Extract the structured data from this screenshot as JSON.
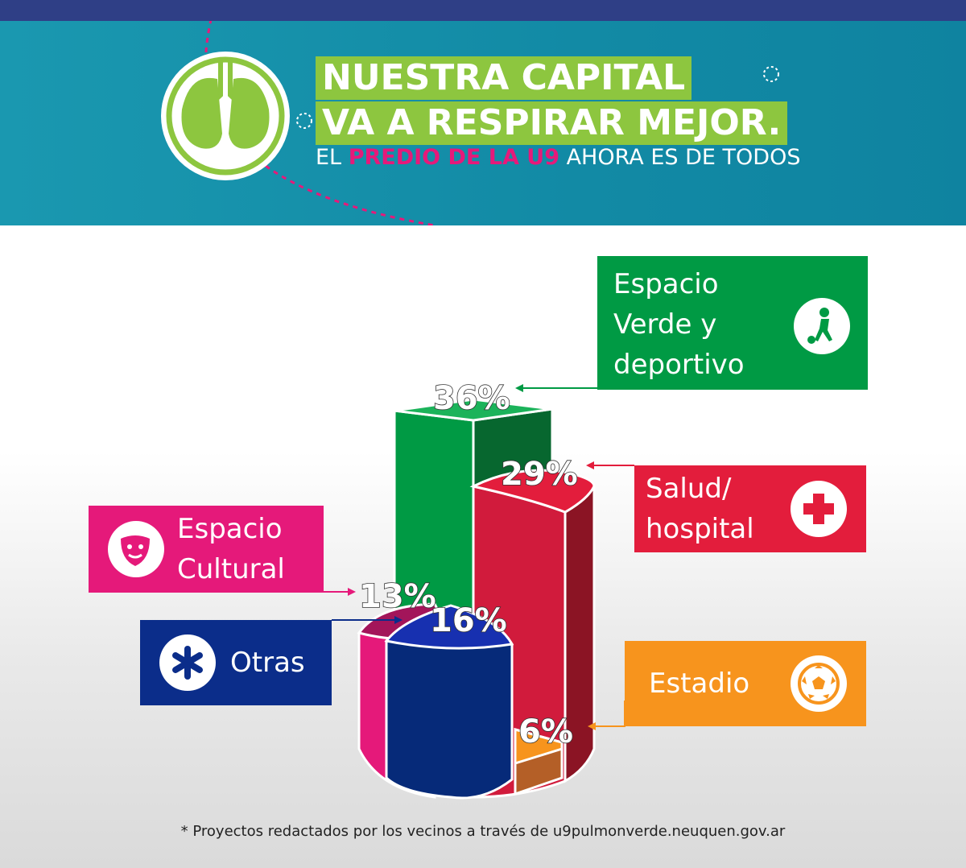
{
  "header": {
    "title_line1": "NUESTRA CAPITAL",
    "title_line2": "VA A RESPIRAR MEJOR.",
    "subtitle_pre": "EL ",
    "subtitle_highlight": "PREDIO DE LA U9",
    "subtitle_post": " AHORA ES DE TODOS"
  },
  "chart_data": {
    "type": "pie",
    "style": "3d-stacked-columns",
    "categories": [
      "Espacio Verde y deportivo",
      "Salud/ hospital",
      "Espacio Cultural",
      "Otras",
      "Estadio"
    ],
    "values": [
      36,
      29,
      13,
      16,
      6
    ],
    "unit": "%",
    "labels": [
      "36%",
      "29%",
      "13%",
      "16%",
      "6%"
    ],
    "colors": [
      "#009a44",
      "#e31d3c",
      "#e5197a",
      "#0b2d8a",
      "#f7941d"
    ]
  },
  "legend": {
    "verde": {
      "line1": "Espacio",
      "line2": "Verde y",
      "line3": "deportivo",
      "icon": "soccer-player-icon"
    },
    "salud": {
      "line1": "Salud/",
      "line2": "hospital",
      "icon": "medical-cross-icon"
    },
    "cultural": {
      "line1": "Espacio",
      "line2": "Cultural",
      "icon": "theater-mask-icon"
    },
    "otras": {
      "line1": "Otras",
      "icon": "asterisk-icon"
    },
    "estadio": {
      "line1": "Estadio",
      "icon": "soccer-ball-icon"
    }
  },
  "footer": "* Proyectos redactados por los vecinos a través de u9pulmonverde.neuquen.gov.ar"
}
